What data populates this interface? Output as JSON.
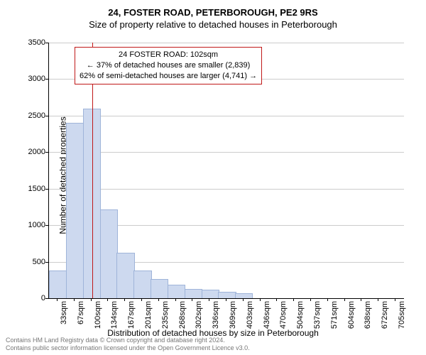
{
  "title": {
    "main": "24, FOSTER ROAD, PETERBOROUGH, PE2 9RS",
    "sub": "Size of property relative to detached houses in Peterborough"
  },
  "chart": {
    "type": "bar",
    "categories": [
      "33sqm",
      "67sqm",
      "100sqm",
      "134sqm",
      "167sqm",
      "201sqm",
      "235sqm",
      "268sqm",
      "302sqm",
      "336sqm",
      "369sqm",
      "403sqm",
      "436sqm",
      "470sqm",
      "504sqm",
      "537sqm",
      "571sqm",
      "604sqm",
      "638sqm",
      "672sqm",
      "705sqm"
    ],
    "values": [
      370,
      2390,
      2590,
      1210,
      610,
      370,
      250,
      180,
      120,
      110,
      75,
      55,
      0,
      0,
      0,
      0,
      0,
      0,
      0,
      0,
      0
    ],
    "ylim": [
      0,
      3500
    ],
    "ytick_step": 500,
    "xlabel": "Distribution of detached houses by size in Peterborough",
    "ylabel": "Number of detached properties",
    "bar_color": "#cdd9ef",
    "bar_border": "#9fb4d9",
    "grid_color": "#cccccc",
    "background": "#ffffff",
    "marker": {
      "x_value": 102,
      "color": "#c01818",
      "x_domain": [
        16.5,
        721.5
      ]
    },
    "callout": {
      "border": "#c01818",
      "lines": [
        "24 FOSTER ROAD: 102sqm",
        "← 37% of detached houses are smaller (2,839)",
        "62% of semi-detached houses are larger (4,741) →"
      ]
    }
  },
  "footer": {
    "line1": "Contains HM Land Registry data © Crown copyright and database right 2024.",
    "line2": "Contains public sector information licensed under the Open Government Licence v3.0."
  }
}
